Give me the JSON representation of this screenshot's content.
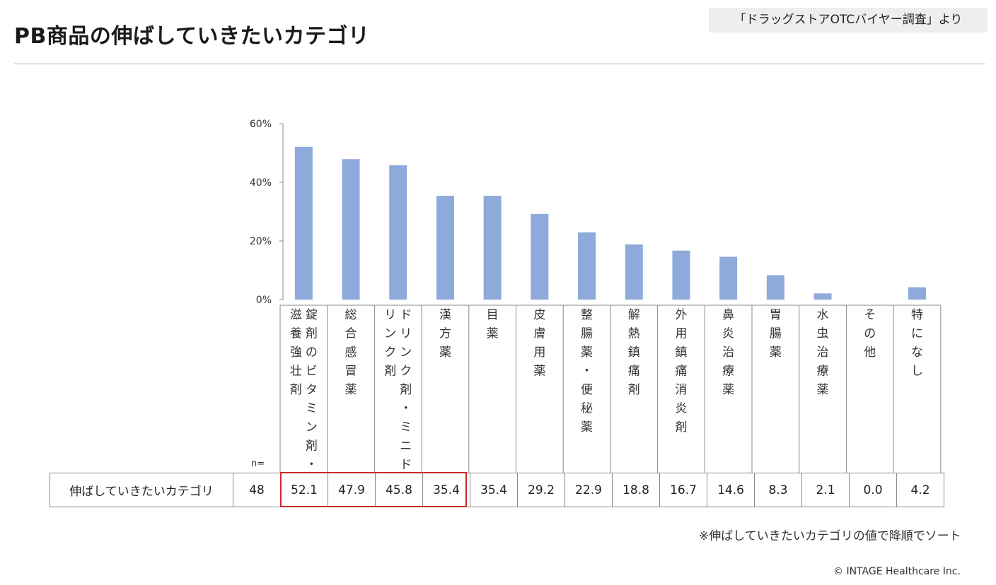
{
  "header": {
    "title": "PB商品の伸ばしていきたいカテゴリ",
    "source": "「ドラッグストアOTCバイヤー調査」より"
  },
  "chart_data": {
    "type": "bar",
    "title": "PB商品の伸ばしていきたいカテゴリ",
    "ylim": [
      0,
      60
    ],
    "yticks": [
      "0%",
      "20%",
      "40%",
      "60%"
    ],
    "bar_color": "#8eaadb",
    "grid": false,
    "categories": [
      {
        "lines": [
          "滋養強壮剤",
          "錠剤のビタミン剤・"
        ]
      },
      {
        "lines": [
          "総合感冒薬"
        ]
      },
      {
        "lines": [
          "リンク剤",
          "ドリンク剤・ミニド"
        ]
      },
      {
        "lines": [
          "漢方薬"
        ]
      },
      {
        "lines": [
          "目薬"
        ]
      },
      {
        "lines": [
          "皮膚用薬"
        ]
      },
      {
        "lines": [
          "整腸薬・便秘薬"
        ]
      },
      {
        "lines": [
          "解熱鎮痛剤"
        ]
      },
      {
        "lines": [
          "外用鎮痛消炎剤"
        ]
      },
      {
        "lines": [
          "鼻炎治療薬"
        ]
      },
      {
        "lines": [
          "胃腸薬"
        ]
      },
      {
        "lines": [
          "水虫治療薬"
        ]
      },
      {
        "lines": [
          "その他"
        ]
      },
      {
        "lines": [
          "特になし"
        ]
      }
    ],
    "series": [
      {
        "values": [
          52.1,
          47.9,
          45.8,
          35.4,
          35.4,
          29.2,
          22.9,
          18.8,
          16.7,
          14.6,
          8.3,
          2.1,
          0.0,
          4.2
        ]
      }
    ],
    "highlight_color": "#cc2a2a"
  },
  "table": {
    "n_label": "n=",
    "row_label": "伸ばしていきたいカテゴリ",
    "n_value": "48",
    "values": [
      "52.1",
      "47.9",
      "45.8",
      "35.4",
      "35.4",
      "29.2",
      "22.9",
      "18.8",
      "16.7",
      "14.6",
      "8.3",
      "2.1",
      "0.0",
      "4.2"
    ]
  },
  "footer": {
    "note": "※伸ばしていきたいカテゴリの値で降順でソート",
    "copyright": "© INTAGE Healthcare Inc."
  }
}
